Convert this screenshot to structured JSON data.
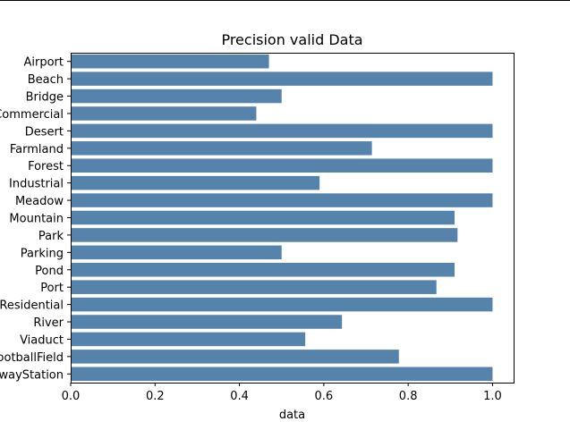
{
  "chart_data": {
    "type": "bar",
    "orientation": "horizontal",
    "title": "Precision valid Data",
    "xlabel": "data",
    "ylabel": "",
    "xlim": [
      0,
      1.05
    ],
    "xticks": [
      "0.0",
      "0.2",
      "0.4",
      "0.6",
      "0.8",
      "1.0"
    ],
    "grid": false,
    "bar_color": "#5683ab",
    "categories": [
      "Airport",
      "Beach",
      "Bridge",
      "Commercial",
      "Desert",
      "Farmland",
      "Forest",
      "Industrial",
      "Meadow",
      "Mountain",
      "Park",
      "Parking",
      "Pond",
      "Port",
      "Residential",
      "River",
      "Viaduct",
      "FootballField",
      "RailwayStation"
    ],
    "values": [
      0.47,
      1.0,
      0.5,
      0.44,
      1.0,
      0.714,
      1.0,
      0.59,
      1.0,
      0.91,
      0.917,
      0.5,
      0.91,
      0.867,
      1.0,
      0.643,
      0.556,
      0.778,
      1.0
    ]
  }
}
